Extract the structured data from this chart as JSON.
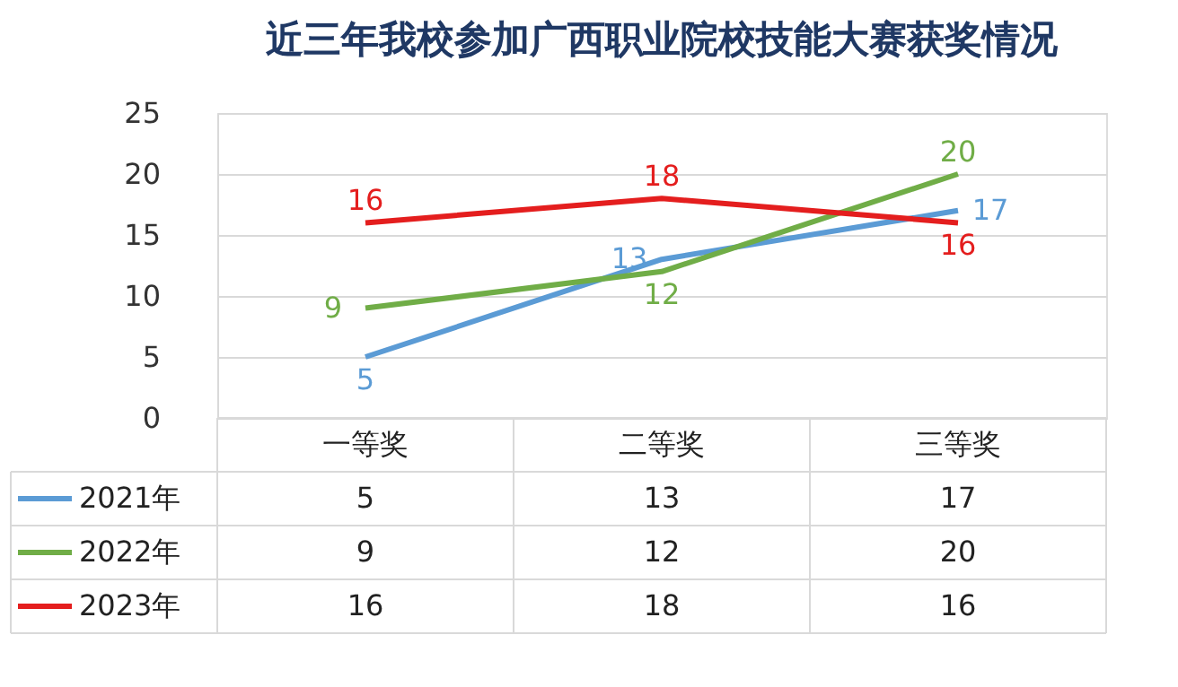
{
  "chart_data": {
    "type": "line",
    "title": "近三年我校参加广西职业院校技能大赛获奖情况",
    "categories": [
      "一等奖",
      "二等奖",
      "三等奖"
    ],
    "series": [
      {
        "name": "2021年",
        "color": "#5b9bd5",
        "values": [
          5,
          13,
          17
        ]
      },
      {
        "name": "2022年",
        "color": "#70ad47",
        "values": [
          9,
          12,
          20
        ]
      },
      {
        "name": "2023年",
        "color": "#e41e1e",
        "values": [
          16,
          18,
          16
        ]
      }
    ],
    "annotations": [
      {
        "text": "5",
        "x": "一等奖",
        "y": 5
      },
      {
        "text": "9",
        "x": "一等奖",
        "y": 9
      },
      {
        "text": "16",
        "x": "一等奖",
        "y": 16
      },
      {
        "text": "13",
        "x": "二等奖",
        "y": 13
      },
      {
        "text": "12",
        "x": "二等奖",
        "y": 12
      },
      {
        "text": "18",
        "x": "二等奖",
        "y": 18
      },
      {
        "text": "17",
        "x": "三等奖",
        "y": 17
      },
      {
        "text": "20",
        "x": "三等奖",
        "y": 20
      },
      {
        "text": "16",
        "x": "三等奖",
        "y": 16
      }
    ],
    "ylim": [
      0,
      25
    ],
    "yticks": [
      0,
      5,
      10,
      15,
      20,
      25
    ],
    "grid": "y",
    "legend": "bottom",
    "data_labels": true
  }
}
